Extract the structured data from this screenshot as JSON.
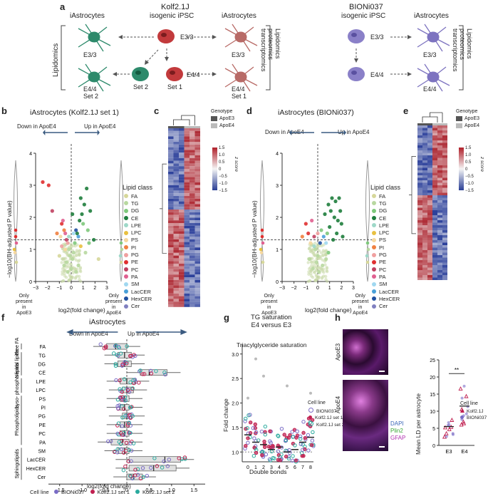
{
  "panel_letters": {
    "a": "a",
    "b": "b",
    "c": "c",
    "d": "d",
    "e": "e",
    "f": "f",
    "g": "g",
    "h": "h"
  },
  "panel_a": {
    "kolf_title": "Kolf2.1J",
    "kolf_sub": "isogenic iPSC",
    "bioni_title": "BIONi037",
    "bioni_sub": "isogenic iPSC",
    "iastro_left": "iAstrocytes",
    "iastro_mid": "iAstrocytes",
    "iastro_right": "iAstrocytes",
    "lipidomics": "Lipidomics",
    "omics1": "Lipidomics\nproteomics\ntranscriptomics",
    "omics2": "Lipidomics\nproteomics\ntranscriptomics",
    "e33": "E3/3",
    "e44": "E4/4",
    "set2": "Set 2",
    "set1": "Set 1",
    "colors": {
      "ipsc_kolf": "#c23a3c",
      "astro_kolf": "#b86a66",
      "astro_green": "#2d8a6b",
      "ipsc_bioni": "#8a80c8",
      "astro_bioni": "#7d73c0"
    }
  },
  "panel_b": {
    "title": "iAstrocytes (Kolf2.1J set 1)",
    "down": "Down in ApoE4",
    "up": "Up in ApoE4",
    "ylabel": "−log10(BH-adjusted P value)",
    "xlabel": "log2(fold change)",
    "only_left": "Only\npresent\nin\nApoE3",
    "only_right": "Only\npresent\nin\nApoE4",
    "yticks": [
      "0",
      "1",
      "2",
      "3",
      "4"
    ],
    "xticks": [
      "−3",
      "−2",
      "−1",
      "0",
      "1",
      "2",
      "3"
    ]
  },
  "lipid_legend": {
    "title": "Lipid class",
    "items": [
      {
        "name": "FA",
        "color": "#d6d79a"
      },
      {
        "name": "TG",
        "color": "#b8d8a0"
      },
      {
        "name": "DG",
        "color": "#7ec87b"
      },
      {
        "name": "CE",
        "color": "#1e7d3c"
      },
      {
        "name": "LPE",
        "color": "#9ed8c8"
      },
      {
        "name": "LPC",
        "color": "#e8c040"
      },
      {
        "name": "PS",
        "color": "#f6d8a0"
      },
      {
        "name": "PI",
        "color": "#f08040"
      },
      {
        "name": "PG",
        "color": "#f0a0a0"
      },
      {
        "name": "PE",
        "color": "#e03030"
      },
      {
        "name": "PC",
        "color": "#c04060"
      },
      {
        "name": "PA",
        "color": "#e06090"
      },
      {
        "name": "SM",
        "color": "#a0d8f0"
      },
      {
        "name": "LacCER",
        "color": "#4aa0d8"
      },
      {
        "name": "HexCER",
        "color": "#2050a0"
      },
      {
        "name": "Cer",
        "color": "#8080c0"
      }
    ]
  },
  "panel_c": {
    "genotype_title": "Genotype",
    "apoe3": "ApoE3",
    "apoe4": "ApoE4",
    "zscore": "z score",
    "zticks": [
      "1.5",
      "1.0",
      "0.5",
      "0",
      "−0.5",
      "−1.0",
      "−1.5"
    ]
  },
  "panel_d": {
    "title": "iAstrocytes (BIONi037)",
    "down": "Down in ApoE4",
    "up": "Up in ApoE4",
    "ylabel": "−log10(BH-adjusted P value)",
    "xlabel": "log2(fold change)",
    "only_left": "Only\npresent\nin\nApoE3",
    "only_right": "Only\npresent\nin\nApoE4",
    "yticks": [
      "0",
      "1",
      "2",
      "3",
      "4"
    ],
    "xticks": [
      "−3",
      "−2",
      "−1",
      "0",
      "1",
      "2",
      "3"
    ]
  },
  "panel_f": {
    "title": "iAstrocytes",
    "down": "Down in ApoE4",
    "up": "Up in ApoE4",
    "xlabel": "log2(fold change)",
    "classes": [
      "FA",
      "TG",
      "DG",
      "CE",
      "LPE",
      "LPC",
      "PS",
      "PI",
      "PG",
      "PE",
      "PC",
      "PA",
      "SM",
      "LacCER",
      "HexCER",
      "Cer"
    ],
    "groups": [
      "Free\nFA",
      "Neutral\nlipids",
      "Lyso-\nphospho\nlipids",
      "Phospholipids",
      "Sphingolipids"
    ],
    "xticks": [
      "−1.5",
      "−1.0",
      "−0.5",
      "0",
      "0.5",
      "1.0",
      "1.5"
    ],
    "legend_title": "Cell line",
    "legend": [
      "BIONi037",
      "Kolf2.1J set 1",
      "Kolf2.1J set 2"
    ]
  },
  "panel_g": {
    "title": "TG saturation\nE4 versus E3",
    "inner_title": "Triacylglyceride saturation",
    "ylabel": "Fold change",
    "xlabel": "Double bonds",
    "yticks": [
      "1.0",
      "1.5",
      "2.0",
      "2.5",
      "3.0"
    ],
    "xticks": [
      "0",
      "1",
      "2",
      "3",
      "4",
      "5",
      "6",
      "7",
      "8"
    ],
    "legend_title": "Cell line",
    "legend": [
      "BIONi037",
      "Kolf2.1J set 1",
      "Kolf2.1J set 2"
    ]
  },
  "panel_h": {
    "apoe3": "ApoE3",
    "apoe4": "ApoE4",
    "dapi": "DAPI",
    "plin2": "Plin2",
    "gfap": "GFAP",
    "ylabel": "Mean LD per astrocyte",
    "yticks": [
      "0",
      "5",
      "10",
      "15",
      "20",
      "25"
    ],
    "xticks": [
      "E3",
      "E4"
    ],
    "sig": "**",
    "legend_title": "Cell line",
    "legend": [
      "Kolf2.1J",
      "BIONi037"
    ]
  },
  "chart_data": [
    {
      "type": "scatter",
      "title": "iAstrocytes (Kolf2.1J set 1)",
      "xlabel": "log2(fold change)",
      "ylabel": "−log10(BH-adjusted P value)",
      "xlim": [
        -3,
        3
      ],
      "ylim": [
        0,
        4
      ],
      "points": [
        [
          -1.9,
          3.0,
          "PE"
        ],
        [
          -2.4,
          3.1,
          "PE"
        ],
        [
          -1.6,
          2.2,
          "PC"
        ],
        [
          -0.8,
          1.8,
          "PE"
        ],
        [
          -0.6,
          1.6,
          "PI"
        ],
        [
          -0.5,
          1.5,
          "PA"
        ],
        [
          -1.2,
          1.5,
          "PI"
        ],
        [
          -0.9,
          1.4,
          "PS"
        ],
        [
          -0.7,
          1.9,
          "PA"
        ],
        [
          -0.4,
          1.3,
          "PC"
        ],
        [
          -0.3,
          1.2,
          "PG"
        ],
        [
          -0.2,
          1.0,
          "TG"
        ],
        [
          -0.1,
          0.8,
          "TG"
        ],
        [
          0.1,
          0.7,
          "TG"
        ],
        [
          0.2,
          0.9,
          "TG"
        ],
        [
          -0.4,
          0.6,
          "TG"
        ],
        [
          0.3,
          1.2,
          "DG"
        ],
        [
          0.5,
          1.5,
          "CE"
        ],
        [
          0.7,
          1.9,
          "CE"
        ],
        [
          0.9,
          2.1,
          "CE"
        ],
        [
          1.1,
          2.4,
          "CE"
        ],
        [
          1.3,
          2.9,
          "CE"
        ],
        [
          0.8,
          2.6,
          "CE"
        ],
        [
          1.6,
          2.2,
          "CE"
        ],
        [
          0.6,
          1.4,
          "LacCER"
        ],
        [
          0.4,
          1.6,
          "HexCER"
        ],
        [
          1.0,
          1.8,
          "DG"
        ],
        [
          1.4,
          1.6,
          "DG"
        ],
        [
          0.2,
          1.5,
          "SM"
        ],
        [
          -0.2,
          1.4,
          "LPE"
        ],
        [
          0.1,
          2.1,
          "CE"
        ],
        [
          1.9,
          1.3,
          "CE"
        ],
        [
          -0.6,
          0.5,
          "TG"
        ],
        [
          0.6,
          0.5,
          "TG"
        ],
        [
          -1.0,
          0.8,
          "FA"
        ],
        [
          1.2,
          0.9,
          "TG"
        ],
        [
          0.0,
          0.4,
          "TG"
        ],
        [
          -0.3,
          0.3,
          "TG"
        ],
        [
          0.4,
          0.3,
          "TG"
        ],
        [
          2.3,
          0.7,
          "FA"
        ],
        [
          -0.5,
          1.0,
          "PS"
        ],
        [
          0.8,
          1.1,
          "LPC"
        ],
        [
          -0.8,
          1.1,
          "PG"
        ],
        [
          1.5,
          1.2,
          "DG"
        ]
      ]
    },
    {
      "type": "scatter",
      "title": "iAstrocytes (BIONi037)",
      "xlabel": "log2(fold change)",
      "ylabel": "−log10(BH-adjusted P value)",
      "xlim": [
        -3,
        3
      ],
      "ylim": [
        0,
        4
      ],
      "points": [
        [
          -1.0,
          1.8,
          "PE"
        ],
        [
          -0.8,
          1.5,
          "PE"
        ],
        [
          -0.5,
          1.9,
          "PA"
        ],
        [
          -0.3,
          1.4,
          "PC"
        ],
        [
          -1.3,
          1.4,
          "PI"
        ],
        [
          -0.6,
          1.2,
          "PS"
        ],
        [
          -0.2,
          1.0,
          "TG"
        ],
        [
          0.0,
          0.8,
          "TG"
        ],
        [
          0.3,
          1.6,
          "DG"
        ],
        [
          0.6,
          2.1,
          "CE"
        ],
        [
          0.9,
          2.4,
          "CE"
        ],
        [
          1.2,
          2.6,
          "CE"
        ],
        [
          1.5,
          2.5,
          "CE"
        ],
        [
          1.8,
          2.6,
          "CE"
        ],
        [
          1.1,
          2.2,
          "CE"
        ],
        [
          1.4,
          2.0,
          "CE"
        ],
        [
          1.7,
          1.9,
          "CE"
        ],
        [
          2.0,
          1.8,
          "CE"
        ],
        [
          1.0,
          1.7,
          "CE"
        ],
        [
          0.8,
          1.5,
          "DG"
        ],
        [
          1.6,
          1.5,
          "CE"
        ],
        [
          1.3,
          1.3,
          "CE"
        ],
        [
          2.1,
          1.4,
          "CE"
        ],
        [
          0.5,
          1.4,
          "LacCER"
        ],
        [
          0.2,
          1.2,
          "HexCER"
        ],
        [
          -0.1,
          0.6,
          "TG"
        ],
        [
          0.4,
          0.5,
          "TG"
        ],
        [
          -0.4,
          0.4,
          "TG"
        ],
        [
          0.7,
          0.7,
          "TG"
        ],
        [
          -0.7,
          0.7,
          "TG"
        ],
        [
          0.1,
          0.3,
          "TG"
        ],
        [
          0.9,
          0.9,
          "DG"
        ],
        [
          -0.3,
          1.1,
          "LPE"
        ],
        [
          0.0,
          1.5,
          "PG"
        ],
        [
          1.9,
          2.2,
          "CE"
        ],
        [
          0.7,
          1.2,
          "SM"
        ]
      ]
    },
    {
      "type": "box",
      "title": "iAstrocytes",
      "xlabel": "log2(fold change)",
      "categories": [
        "FA",
        "TG",
        "DG",
        "CE",
        "LPE",
        "LPC",
        "PS",
        "PI",
        "PG",
        "PE",
        "PC",
        "PA",
        "SM",
        "LacCER",
        "HexCER",
        "Cer"
      ],
      "median": [
        -0.25,
        -0.05,
        -0.05,
        0.5,
        0.0,
        0.0,
        -0.05,
        -0.05,
        0.0,
        -0.05,
        -0.05,
        -0.1,
        -0.05,
        0.85,
        0.6,
        0.15
      ],
      "q1": [
        -0.45,
        -0.2,
        -0.2,
        0.3,
        -0.15,
        -0.1,
        -0.15,
        -0.15,
        -0.1,
        -0.15,
        -0.15,
        -0.35,
        -0.2,
        0.05,
        0.05,
        0.0
      ],
      "q3": [
        0.0,
        0.1,
        0.1,
        0.9,
        0.2,
        0.15,
        0.05,
        0.05,
        0.1,
        0.05,
        0.05,
        0.05,
        0.05,
        1.2,
        1.1,
        0.35
      ],
      "xlim": [
        -1.75,
        1.75
      ]
    },
    {
      "type": "scatter",
      "title": "Triacylglyceride saturation",
      "xlabel": "Double bonds",
      "ylabel": "Fold change",
      "categories": [
        "0",
        "1",
        "2",
        "3",
        "4",
        "5",
        "6",
        "7",
        "8"
      ],
      "means": [
        1.35,
        1.2,
        1.15,
        1.05,
        1.1,
        1.0,
        1.05,
        1.2,
        1.3
      ],
      "ylim": [
        0.8,
        3.2
      ]
    },
    {
      "type": "scatter",
      "xlabel": "",
      "ylabel": "Mean LD per astrocyte",
      "categories": [
        "E3",
        "E4"
      ],
      "means": [
        5.5,
        11.5
      ],
      "ylim": [
        0,
        25
      ]
    }
  ]
}
